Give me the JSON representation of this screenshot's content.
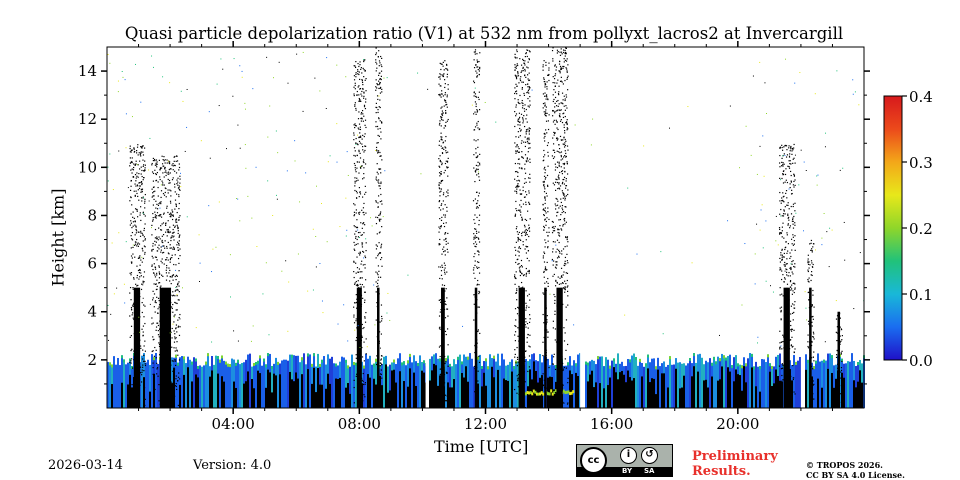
{
  "chart_data": {
    "type": "heatmap",
    "title": "Quasi particle depolarization ratio (V1) at 532 nm from pollyxt_lacros2 at Invercargill",
    "xlabel": "Time [UTC]",
    "ylabel": "Height [km]",
    "xlim_hours": [
      0,
      24
    ],
    "ylim_km": [
      0,
      15
    ],
    "x_ticks": [
      {
        "hour": 4,
        "label": "04:00"
      },
      {
        "hour": 8,
        "label": "08:00"
      },
      {
        "hour": 12,
        "label": "12:00"
      },
      {
        "hour": 16,
        "label": "16:00"
      },
      {
        "hour": 20,
        "label": "20:00"
      }
    ],
    "y_ticks": [
      {
        "km": 2,
        "label": "2"
      },
      {
        "km": 4,
        "label": "4"
      },
      {
        "km": 6,
        "label": "6"
      },
      {
        "km": 8,
        "label": "8"
      },
      {
        "km": 10,
        "label": "10"
      },
      {
        "km": 12,
        "label": "12"
      },
      {
        "km": 14,
        "label": "14"
      }
    ],
    "colorbar": {
      "min": 0.0,
      "max": 0.4,
      "ticks": [
        {
          "value": 0.0,
          "label": "0.0"
        },
        {
          "value": 0.1,
          "label": "0.1"
        },
        {
          "value": 0.2,
          "label": "0.2"
        },
        {
          "value": 0.3,
          "label": "0.3"
        },
        {
          "value": 0.4,
          "label": "0.4"
        }
      ],
      "colormap": [
        "#1f10c8",
        "#1a6df0",
        "#19b8d8",
        "#21c27a",
        "#8fd62a",
        "#e8e81a",
        "#f3a719",
        "#ec4a1b",
        "#d7191c"
      ]
    },
    "boundary_layer_top_km": 2.0,
    "cloud_columns": [
      {
        "start_hour": 0.7,
        "end_hour": 1.2,
        "top_km": 11.0
      },
      {
        "start_hour": 1.4,
        "end_hour": 2.3,
        "top_km": 10.5
      },
      {
        "start_hour": 7.8,
        "end_hour": 8.2,
        "top_km": 14.5
      },
      {
        "start_hour": 8.5,
        "end_hour": 8.7,
        "top_km": 15.0
      },
      {
        "start_hour": 10.5,
        "end_hour": 10.8,
        "top_km": 14.5
      },
      {
        "start_hour": 11.6,
        "end_hour": 11.8,
        "top_km": 15.0
      },
      {
        "start_hour": 12.9,
        "end_hour": 13.4,
        "top_km": 15.0
      },
      {
        "start_hour": 13.8,
        "end_hour": 14.0,
        "top_km": 14.5
      },
      {
        "start_hour": 14.1,
        "end_hour": 14.6,
        "top_km": 15.0
      },
      {
        "start_hour": 21.3,
        "end_hour": 21.8,
        "top_km": 11.0
      },
      {
        "start_hour": 22.2,
        "end_hour": 22.4,
        "top_km": 7.0
      },
      {
        "start_hour": 23.1,
        "end_hour": 23.3,
        "top_km": 4.0
      }
    ],
    "data_gaps_hours": [
      {
        "start_hour": 10.1,
        "end_hour": 10.2
      },
      {
        "start_hour": 15.0,
        "end_hour": 15.1
      },
      {
        "start_hour": 22.0,
        "end_hour": 22.1
      }
    ]
  },
  "footer": {
    "date": "2026-03-14",
    "version": "Version: 4.0",
    "preliminary_line1": "Preliminary",
    "preliminary_line2": "Results.",
    "copyright_line1": "© TROPOS 2026.",
    "copyright_line2": "CC BY SA 4.0 License.",
    "license_badge": {
      "cc": "cc",
      "by": "BY",
      "sa": "SA"
    }
  }
}
